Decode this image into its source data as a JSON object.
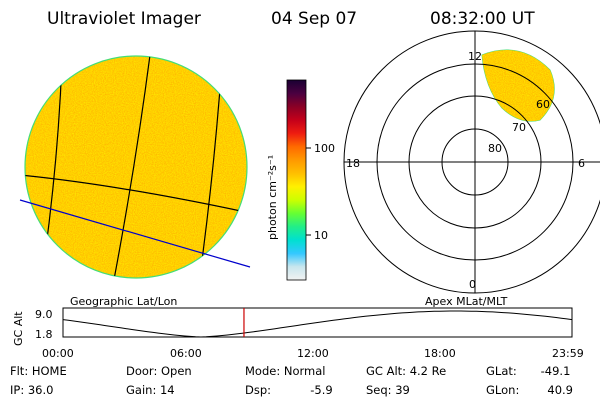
{
  "header": {
    "instrument": "Ultraviolet Imager",
    "date": "04 Sep 07",
    "time": "08:32:00 UT"
  },
  "left_panel": {
    "caption": "Geographic Lat/Lon"
  },
  "colorbar": {
    "unit_label": "photon cm⁻²s⁻¹",
    "tick_labels": [
      "100",
      "10"
    ],
    "scale": "log",
    "colors": [
      "#1a0033",
      "#4a0040",
      "#8a0026",
      "#c4001a",
      "#ee1c10",
      "#ff6a00",
      "#ff9900",
      "#ffbf00",
      "#fff000",
      "#ccff00",
      "#66ff33",
      "#22ee88",
      "#00e0d0",
      "#33c8ff",
      "#c8e6ee",
      "#f2f2f2"
    ]
  },
  "polar_panel": {
    "caption": "Apex MLat/MLT",
    "mlt_labels": {
      "top": "12",
      "left": "18",
      "right": "6",
      "bottom": "0"
    },
    "lat_labels": [
      "60",
      "70",
      "80"
    ]
  },
  "timeline": {
    "ylabel": "GC Alt",
    "y_ticks": [
      "9.0",
      "1.8"
    ],
    "x_ticks": [
      "00:00",
      "06:00",
      "12:00",
      "18:00",
      "23:59"
    ],
    "current_time_hours": 8.533
  },
  "status": {
    "col1": [
      {
        "label": "Flt:",
        "value": "HOME"
      },
      {
        "label": "IP:",
        "value": "36.0"
      }
    ],
    "col2": [
      {
        "label": "Door:",
        "value": "Open"
      },
      {
        "label": "Gain:",
        "value": "14"
      }
    ],
    "col3": [
      {
        "label": "Mode:",
        "value": "Normal"
      },
      {
        "label": "Dsp:",
        "value": "-5.9"
      }
    ],
    "col4": [
      {
        "label": "GC Alt:",
        "value": "4.2 Re"
      },
      {
        "label": "Seq:",
        "value": "39"
      }
    ],
    "col5": [
      {
        "label": "GLat:",
        "value": "-49.1"
      },
      {
        "label": "GLon:",
        "value": "40.9"
      }
    ]
  },
  "colors": {
    "disk_fill": "#ffb300",
    "disk_edge": "#44dd77",
    "grid_line": "#000000",
    "blue_line": "#0000cc",
    "time_marker": "#cc0000"
  }
}
